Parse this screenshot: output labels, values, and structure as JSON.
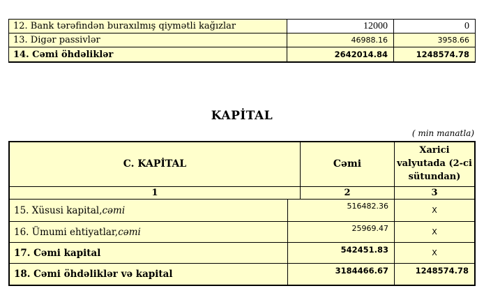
{
  "colors": {
    "cell_bg": "#ffffcc",
    "value_cell_white": "#ffffff",
    "border": "#000000",
    "text": "#000000"
  },
  "liabilities_table": {
    "rows": [
      {
        "label": "12. Bank tərəfindən buraxılmış qiymətli kağızlar",
        "total": "12000",
        "foreign": "0"
      },
      {
        "label": "13. Digər passivlər",
        "total": "46988.16",
        "foreign": "3958.66"
      },
      {
        "label": "14. Cəmi öhdəliklər",
        "total": "2642014.84",
        "foreign": "1248574.78"
      }
    ]
  },
  "capital_section": {
    "title": "KAPİTAL",
    "unit_note": "( min manatla)",
    "header": {
      "col1": "C. KAPİTAL",
      "col2": "Cəmi",
      "col3": "Xarici valyutada (2-ci sütundan)"
    },
    "subheader": {
      "col1": "1",
      "col2": "2",
      "col3": "3"
    },
    "rows": [
      {
        "label": "15. Xüsusi kapital, ",
        "label_italic": "cəmi",
        "total": "516482.36",
        "foreign": "X"
      },
      {
        "label": "16. Ümumi ehtiyatlar, ",
        "label_italic": "cəmi",
        "total": "25969.47",
        "foreign": "X"
      },
      {
        "label": "17. Cəmi kapital",
        "label_italic": "",
        "total": "542451.83",
        "foreign": "X"
      },
      {
        "label": "18. Cəmi öhdəliklər və kapital",
        "label_italic": "",
        "total": "3184466.67",
        "foreign": "1248574.78"
      }
    ]
  }
}
